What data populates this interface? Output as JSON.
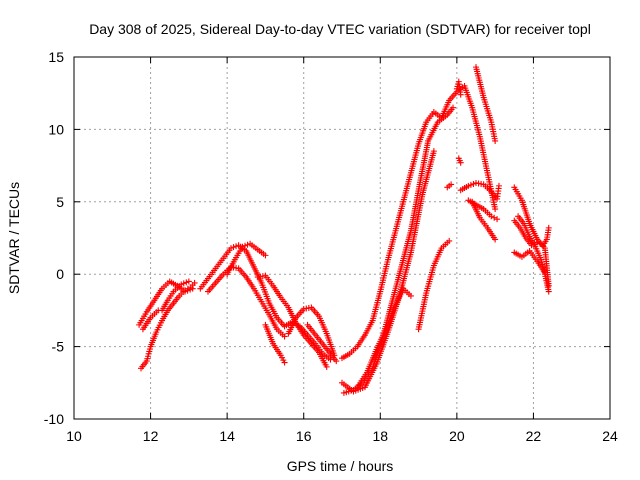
{
  "chart_data": {
    "type": "scatter",
    "title": "Day 308 of 2025, Sidereal Day-to-day VTEC variation (SDTVAR) for receiver topl",
    "xlabel": "GPS time / hours",
    "ylabel": "SDTVAR / TECUs",
    "xlim": [
      10,
      24
    ],
    "ylim": [
      -10,
      15
    ],
    "xticks": [
      10,
      12,
      14,
      16,
      18,
      20,
      22,
      24
    ],
    "yticks": [
      -10,
      -5,
      0,
      5,
      10,
      15
    ],
    "grid": true,
    "marker": "+",
    "color": "#ff0000",
    "series": [
      {
        "name": "arc1",
        "x": [
          11.7,
          11.9,
          12.1,
          12.3,
          12.5,
          12.7,
          12.9,
          13.1
        ],
        "y": [
          -3.5,
          -2.6,
          -1.8,
          -1.0,
          -0.5,
          -0.8,
          -1.2,
          -1.0
        ]
      },
      {
        "name": "arc2",
        "x": [
          11.75,
          11.9,
          12.0,
          12.15,
          12.3,
          12.45,
          12.6,
          12.75,
          12.9,
          13.05,
          13.15
        ],
        "y": [
          -6.5,
          -6.0,
          -5.0,
          -4.0,
          -3.2,
          -2.5,
          -2.0,
          -1.5,
          -1.1,
          -0.9,
          -0.6
        ]
      },
      {
        "name": "arc3",
        "x": [
          11.8,
          12.0,
          12.2,
          12.3,
          12.45,
          12.6,
          12.8,
          13.0
        ],
        "y": [
          -3.8,
          -3.0,
          -2.5,
          -2.5,
          -1.8,
          -1.2,
          -0.7,
          -0.5
        ]
      },
      {
        "name": "arc4",
        "x": [
          13.3,
          13.5,
          13.7,
          13.9,
          14.1,
          14.3,
          14.5,
          14.7,
          14.9,
          15.1,
          15.3,
          15.5,
          15.7,
          15.9,
          16.1,
          16.3,
          16.5,
          16.7
        ],
        "y": [
          -1.0,
          -0.3,
          0.4,
          1.1,
          1.8,
          2.0,
          1.6,
          0.5,
          -0.6,
          -2.0,
          -3.0,
          -3.6,
          -3.3,
          -3.6,
          -4.2,
          -4.8,
          -5.5,
          -5.9
        ]
      },
      {
        "name": "arc5",
        "x": [
          13.5,
          13.7,
          13.9,
          14.1,
          14.3,
          14.5,
          14.7,
          14.9,
          15.1,
          15.3,
          15.5
        ],
        "y": [
          -1.2,
          -0.6,
          0.0,
          0.5,
          0.4,
          -0.2,
          -1.0,
          -1.9,
          -2.8,
          -3.8,
          -4.3
        ]
      },
      {
        "name": "arc6",
        "x": [
          14.0,
          14.2,
          14.4,
          14.6,
          14.8,
          15.0
        ],
        "y": [
          0.0,
          1.0,
          1.9,
          2.1,
          1.7,
          1.3
        ]
      },
      {
        "name": "arc7",
        "x": [
          14.8,
          15.0,
          15.2,
          15.4,
          15.6,
          15.8,
          16.0,
          16.2,
          16.4,
          16.6
        ],
        "y": [
          -0.2,
          -0.1,
          -0.8,
          -1.6,
          -2.3,
          -3.4,
          -4.2,
          -4.8,
          -5.4,
          -6.4
        ]
      },
      {
        "name": "arc8",
        "x": [
          15.0,
          15.2,
          15.4,
          15.5
        ],
        "y": [
          -3.5,
          -4.8,
          -5.6,
          -6.1
        ]
      },
      {
        "name": "arc9",
        "x": [
          15.6,
          15.8,
          16.0,
          16.2,
          16.4,
          16.6,
          16.8
        ],
        "y": [
          -4.1,
          -3.0,
          -2.4,
          -2.3,
          -2.9,
          -4.1,
          -5.6
        ]
      },
      {
        "name": "arc10",
        "x": [
          16.1,
          16.4,
          16.7,
          16.85
        ],
        "y": [
          -3.5,
          -4.5,
          -5.5,
          -6.0
        ]
      },
      {
        "name": "arc11",
        "x": [
          17.0,
          17.2,
          17.4,
          17.6,
          17.8,
          18.0,
          18.2,
          18.4,
          18.6,
          18.8,
          19.0,
          19.2,
          19.4,
          19.6,
          19.8,
          20.0,
          20.2,
          20.4,
          20.6,
          20.8,
          21.0
        ],
        "y": [
          -5.8,
          -5.5,
          -5.0,
          -4.2,
          -3.2,
          -1.2,
          1.0,
          3.0,
          5.0,
          7.0,
          9.0,
          10.5,
          11.2,
          10.8,
          12.0,
          12.6,
          13.0,
          11.5,
          9.5,
          7.0,
          4.5
        ]
      },
      {
        "name": "arc12",
        "x": [
          17.05,
          17.3,
          17.55,
          17.8,
          18.05,
          18.3,
          18.55,
          18.8,
          19.05,
          19.25,
          19.5,
          19.75,
          19.9
        ],
        "y": [
          -8.2,
          -8.0,
          -7.5,
          -6.5,
          -4.5,
          -2.0,
          0.5,
          3.0,
          6.5,
          9.2,
          10.5,
          11.0,
          11.5
        ]
      },
      {
        "name": "arc13",
        "x": [
          17.0,
          17.3,
          17.6,
          17.9,
          18.2,
          18.5,
          18.8,
          19.1,
          19.4
        ],
        "y": [
          -7.5,
          -8.1,
          -7.8,
          -6.2,
          -4.0,
          -1.5,
          1.5,
          5.5,
          8.5
        ]
      },
      {
        "name": "arc14",
        "x": [
          17.4,
          17.65,
          17.9,
          18.15,
          18.35,
          18.6,
          18.8
        ],
        "y": [
          -7.8,
          -6.8,
          -5.2,
          -3.8,
          -2.4,
          -1.0,
          -1.5
        ]
      },
      {
        "name": "arc15",
        "x": [
          19.0,
          19.2,
          19.4,
          19.6,
          19.8
        ],
        "y": [
          -3.8,
          -1.3,
          0.6,
          1.8,
          2.3
        ]
      },
      {
        "name": "arc16",
        "x": [
          19.75,
          19.85
        ],
        "y": [
          6.0,
          6.2
        ]
      },
      {
        "name": "arc17",
        "x": [
          20.0,
          20.05,
          20.1
        ],
        "y": [
          12.8,
          13.3,
          12.4
        ]
      },
      {
        "name": "arc18",
        "x": [
          20.05,
          20.1
        ],
        "y": [
          8.0,
          7.7
        ]
      },
      {
        "name": "arc19",
        "x": [
          20.1,
          20.3,
          20.5,
          20.7,
          20.9,
          21.05,
          21.1
        ],
        "y": [
          5.8,
          6.1,
          6.3,
          6.2,
          5.7,
          5.2,
          6.1
        ]
      },
      {
        "name": "arc20",
        "x": [
          20.3,
          20.5,
          20.7,
          20.9,
          21.05
        ],
        "y": [
          5.1,
          4.8,
          4.5,
          4.0,
          3.8
        ]
      },
      {
        "name": "arc21",
        "x": [
          20.4,
          20.6,
          20.8,
          21.0
        ],
        "y": [
          5.0,
          3.9,
          3.2,
          2.4
        ]
      },
      {
        "name": "arc22",
        "x": [
          20.5,
          20.7,
          20.9,
          21.0
        ],
        "y": [
          14.3,
          12.2,
          10.5,
          9.2
        ]
      },
      {
        "name": "arc23",
        "x": [
          21.5,
          21.7,
          21.9,
          22.1,
          22.3,
          22.4
        ],
        "y": [
          6.0,
          5.1,
          3.5,
          2.4,
          1.8,
          -0.8
        ]
      },
      {
        "name": "arc24",
        "x": [
          21.5,
          21.65,
          21.8,
          21.95,
          22.1,
          22.25,
          22.35,
          22.4
        ],
        "y": [
          3.7,
          3.2,
          2.5,
          2.0,
          2.2,
          2.0,
          2.4,
          3.2
        ]
      },
      {
        "name": "arc25",
        "x": [
          21.6,
          21.75,
          21.9,
          22.05,
          22.2,
          22.3,
          22.4
        ],
        "y": [
          4.0,
          3.5,
          2.6,
          1.9,
          1.0,
          0.0,
          -1.2
        ]
      },
      {
        "name": "arc26",
        "x": [
          21.5,
          21.7,
          21.9,
          22.1,
          22.3
        ],
        "y": [
          1.5,
          1.2,
          1.6,
          0.9,
          0.1
        ]
      }
    ]
  }
}
